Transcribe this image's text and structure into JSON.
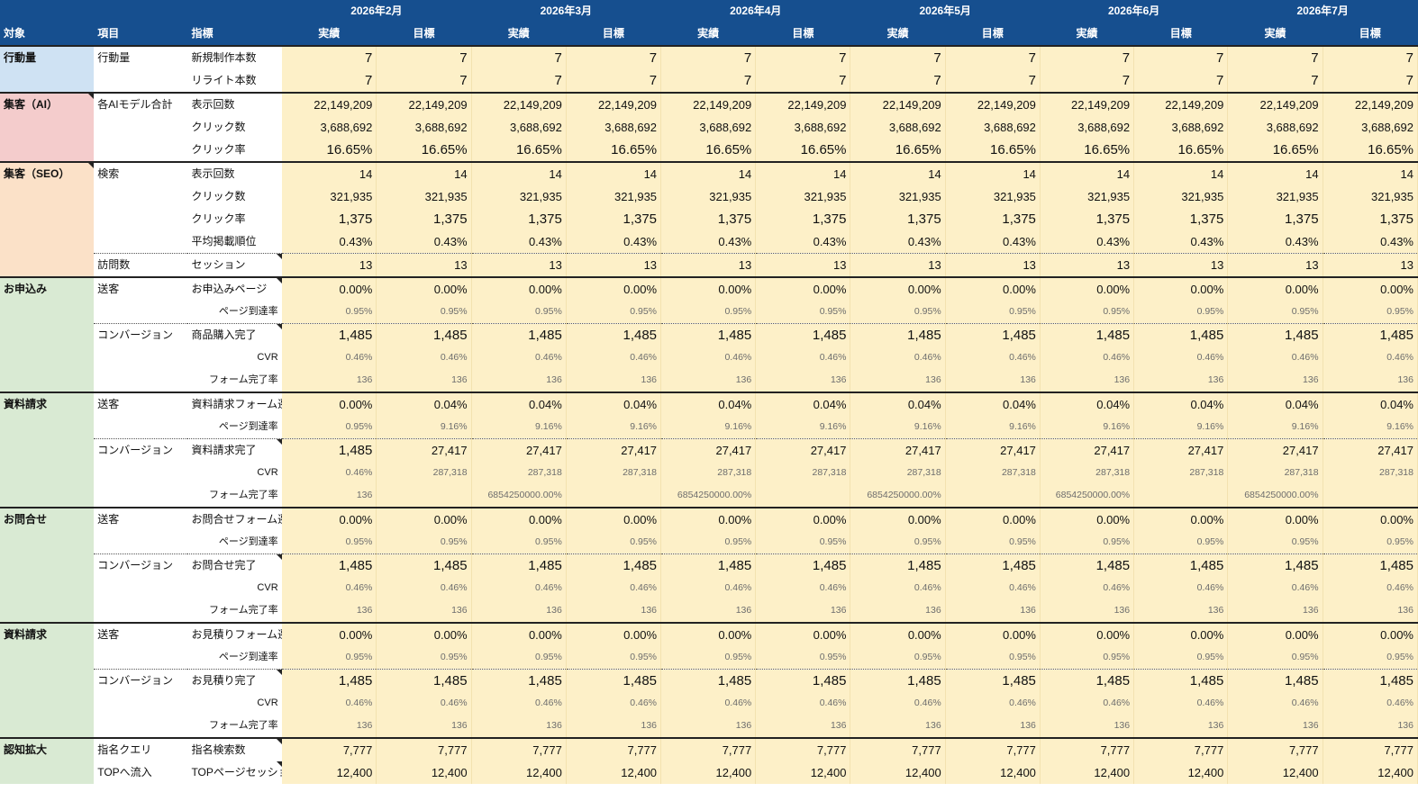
{
  "header": {
    "months": [
      "2026年2月",
      "2026年3月",
      "2026年4月",
      "2026年5月",
      "2026年6月",
      "2026年7月"
    ],
    "col_target": "対象",
    "col_item": "項目",
    "col_metric": "指標",
    "actual": "実績",
    "goal": "目標"
  },
  "rows": [
    {
      "target": "行動量",
      "item": "行動量",
      "metric": "新規制作本数",
      "values": [
        "7",
        "7",
        "7",
        "7",
        "7",
        "7",
        "7",
        "7",
        "7",
        "7",
        "7",
        "7"
      ],
      "bg": "blue",
      "sec": true,
      "size": "big"
    },
    {
      "target": "",
      "item": "",
      "metric": "リライト本数",
      "values": [
        "7",
        "7",
        "7",
        "7",
        "7",
        "7",
        "7",
        "7",
        "7",
        "7",
        "7",
        "7"
      ],
      "bg": "blue",
      "size": "big"
    },
    {
      "target": "集客（AI）",
      "item": "各AIモデル合計",
      "metric": "表示回数",
      "values": [
        "22,149,209",
        "22,149,209",
        "22,149,209",
        "22,149,209",
        "22,149,209",
        "22,149,209",
        "22,149,209",
        "22,149,209",
        "22,149,209",
        "22,149,209",
        "22,149,209",
        "22,149,209"
      ],
      "bg": "pink",
      "sec": true,
      "tri": true
    },
    {
      "target": "",
      "item": "",
      "metric": "クリック数",
      "values": [
        "3,688,692",
        "3,688,692",
        "3,688,692",
        "3,688,692",
        "3,688,692",
        "3,688,692",
        "3,688,692",
        "3,688,692",
        "3,688,692",
        "3,688,692",
        "3,688,692",
        "3,688,692"
      ],
      "bg": "pink"
    },
    {
      "target": "",
      "item": "",
      "metric": "クリック率",
      "values": [
        "16.65%",
        "16.65%",
        "16.65%",
        "16.65%",
        "16.65%",
        "16.65%",
        "16.65%",
        "16.65%",
        "16.65%",
        "16.65%",
        "16.65%",
        "16.65%"
      ],
      "bg": "pink",
      "size": "big"
    },
    {
      "target": "集客（SEO）",
      "item": "検索",
      "metric": "表示回数",
      "values": [
        "14",
        "14",
        "14",
        "14",
        "14",
        "14",
        "14",
        "14",
        "14",
        "14",
        "14",
        "14"
      ],
      "bg": "orange",
      "sec": true,
      "tri": true
    },
    {
      "target": "",
      "item": "",
      "metric": "クリック数",
      "values": [
        "321,935",
        "321,935",
        "321,935",
        "321,935",
        "321,935",
        "321,935",
        "321,935",
        "321,935",
        "321,935",
        "321,935",
        "321,935",
        "321,935"
      ],
      "bg": "orange"
    },
    {
      "target": "",
      "item": "",
      "metric": "クリック率",
      "values": [
        "1,375",
        "1,375",
        "1,375",
        "1,375",
        "1,375",
        "1,375",
        "1,375",
        "1,375",
        "1,375",
        "1,375",
        "1,375",
        "1,375"
      ],
      "bg": "orange",
      "size": "big"
    },
    {
      "target": "",
      "item": "",
      "metric": "平均掲載順位",
      "values": [
        "0.43%",
        "0.43%",
        "0.43%",
        "0.43%",
        "0.43%",
        "0.43%",
        "0.43%",
        "0.43%",
        "0.43%",
        "0.43%",
        "0.43%",
        "0.43%"
      ],
      "bg": "orange"
    },
    {
      "target": "",
      "item": "訪問数",
      "metric": "セッション",
      "values": [
        "13",
        "13",
        "13",
        "13",
        "13",
        "13",
        "13",
        "13",
        "13",
        "13",
        "13",
        "13"
      ],
      "bg": "orange",
      "sub": true,
      "mtri": true
    },
    {
      "target": "お申込み",
      "item": "送客",
      "metric": "お申込みページ",
      "values": [
        "0.00%",
        "0.00%",
        "0.00%",
        "0.00%",
        "0.00%",
        "0.00%",
        "0.00%",
        "0.00%",
        "0.00%",
        "0.00%",
        "0.00%",
        "0.00%"
      ],
      "bg": "green",
      "sec": true,
      "mtri": true
    },
    {
      "target": "",
      "item": "",
      "metric": "ページ到達率",
      "values": [
        "0.95%",
        "0.95%",
        "0.95%",
        "0.95%",
        "0.95%",
        "0.95%",
        "0.95%",
        "0.95%",
        "0.95%",
        "0.95%",
        "0.95%",
        "0.95%"
      ],
      "bg": "green",
      "right": true,
      "size": "small"
    },
    {
      "target": "",
      "item": "コンバージョン",
      "metric": "商品購入完了",
      "values": [
        "1,485",
        "1,485",
        "1,485",
        "1,485",
        "1,485",
        "1,485",
        "1,485",
        "1,485",
        "1,485",
        "1,485",
        "1,485",
        "1,485"
      ],
      "bg": "green",
      "sub": true,
      "size": "big",
      "mtri": true
    },
    {
      "target": "",
      "item": "",
      "metric": "CVR",
      "values": [
        "0.46%",
        "0.46%",
        "0.46%",
        "0.46%",
        "0.46%",
        "0.46%",
        "0.46%",
        "0.46%",
        "0.46%",
        "0.46%",
        "0.46%",
        "0.46%"
      ],
      "bg": "green",
      "right": true,
      "size": "small"
    },
    {
      "target": "",
      "item": "",
      "metric": "フォーム完了率",
      "values": [
        "136",
        "136",
        "136",
        "136",
        "136",
        "136",
        "136",
        "136",
        "136",
        "136",
        "136",
        "136"
      ],
      "bg": "green",
      "right": true,
      "size": "small"
    },
    {
      "target": "資料請求",
      "item": "送客",
      "metric": "資料請求フォーム遷",
      "values": [
        "0.00%",
        "0.04%",
        "0.04%",
        "0.04%",
        "0.04%",
        "0.04%",
        "0.04%",
        "0.04%",
        "0.04%",
        "0.04%",
        "0.04%",
        "0.04%"
      ],
      "bg": "green",
      "sec": true
    },
    {
      "target": "",
      "item": "",
      "metric": "ページ到達率",
      "values": [
        "0.95%",
        "9.16%",
        "9.16%",
        "9.16%",
        "9.16%",
        "9.16%",
        "9.16%",
        "9.16%",
        "9.16%",
        "9.16%",
        "9.16%",
        "9.16%"
      ],
      "bg": "green",
      "right": true,
      "size": "small"
    },
    {
      "target": "",
      "item": "コンバージョン",
      "metric": "資料請求完了",
      "values": [
        "1,485",
        "27,417",
        "27,417",
        "27,417",
        "27,417",
        "27,417",
        "27,417",
        "27,417",
        "27,417",
        "27,417",
        "27,417",
        "27,417"
      ],
      "bg": "green",
      "sub": true,
      "mtri": true,
      "firstbig": true
    },
    {
      "target": "",
      "item": "",
      "metric": "CVR",
      "values": [
        "0.46%",
        "287,318",
        "287,318",
        "287,318",
        "287,318",
        "287,318",
        "287,318",
        "287,318",
        "287,318",
        "287,318",
        "287,318",
        "287,318"
      ],
      "bg": "green",
      "right": true,
      "size": "small"
    },
    {
      "target": "",
      "item": "",
      "metric": "フォーム完了率",
      "values": [
        "136",
        "",
        "6854250000.00%",
        "",
        "6854250000.00%",
        "",
        "6854250000.00%",
        "",
        "6854250000.00%",
        "",
        "6854250000.00%",
        ""
      ],
      "bg": "green",
      "right": true,
      "size": "small"
    },
    {
      "target": "お問合せ",
      "item": "送客",
      "metric": "お問合せフォーム遷",
      "values": [
        "0.00%",
        "0.00%",
        "0.00%",
        "0.00%",
        "0.00%",
        "0.00%",
        "0.00%",
        "0.00%",
        "0.00%",
        "0.00%",
        "0.00%",
        "0.00%"
      ],
      "bg": "green",
      "sec": true
    },
    {
      "target": "",
      "item": "",
      "metric": "ページ到達率",
      "values": [
        "0.95%",
        "0.95%",
        "0.95%",
        "0.95%",
        "0.95%",
        "0.95%",
        "0.95%",
        "0.95%",
        "0.95%",
        "0.95%",
        "0.95%",
        "0.95%"
      ],
      "bg": "green",
      "right": true,
      "size": "small"
    },
    {
      "target": "",
      "item": "コンバージョン",
      "metric": "お問合せ完了",
      "values": [
        "1,485",
        "1,485",
        "1,485",
        "1,485",
        "1,485",
        "1,485",
        "1,485",
        "1,485",
        "1,485",
        "1,485",
        "1,485",
        "1,485"
      ],
      "bg": "green",
      "sub": true,
      "size": "big",
      "mtri": true
    },
    {
      "target": "",
      "item": "",
      "metric": "CVR",
      "values": [
        "0.46%",
        "0.46%",
        "0.46%",
        "0.46%",
        "0.46%",
        "0.46%",
        "0.46%",
        "0.46%",
        "0.46%",
        "0.46%",
        "0.46%",
        "0.46%"
      ],
      "bg": "green",
      "right": true,
      "size": "small"
    },
    {
      "target": "",
      "item": "",
      "metric": "フォーム完了率",
      "values": [
        "136",
        "136",
        "136",
        "136",
        "136",
        "136",
        "136",
        "136",
        "136",
        "136",
        "136",
        "136"
      ],
      "bg": "green",
      "right": true,
      "size": "small"
    },
    {
      "target": "資料請求",
      "item": "送客",
      "metric": "お見積りフォーム遷",
      "values": [
        "0.00%",
        "0.00%",
        "0.00%",
        "0.00%",
        "0.00%",
        "0.00%",
        "0.00%",
        "0.00%",
        "0.00%",
        "0.00%",
        "0.00%",
        "0.00%"
      ],
      "bg": "green",
      "sec": true
    },
    {
      "target": "",
      "item": "",
      "metric": "ページ到達率",
      "values": [
        "0.95%",
        "0.95%",
        "0.95%",
        "0.95%",
        "0.95%",
        "0.95%",
        "0.95%",
        "0.95%",
        "0.95%",
        "0.95%",
        "0.95%",
        "0.95%"
      ],
      "bg": "green",
      "right": true,
      "size": "small"
    },
    {
      "target": "",
      "item": "コンバージョン",
      "metric": "お見積り完了",
      "values": [
        "1,485",
        "1,485",
        "1,485",
        "1,485",
        "1,485",
        "1,485",
        "1,485",
        "1,485",
        "1,485",
        "1,485",
        "1,485",
        "1,485"
      ],
      "bg": "green",
      "sub": true,
      "size": "big",
      "mtri": true
    },
    {
      "target": "",
      "item": "",
      "metric": "CVR",
      "values": [
        "0.46%",
        "0.46%",
        "0.46%",
        "0.46%",
        "0.46%",
        "0.46%",
        "0.46%",
        "0.46%",
        "0.46%",
        "0.46%",
        "0.46%",
        "0.46%"
      ],
      "bg": "green",
      "right": true,
      "size": "small"
    },
    {
      "target": "",
      "item": "",
      "metric": "フォーム完了率",
      "values": [
        "136",
        "136",
        "136",
        "136",
        "136",
        "136",
        "136",
        "136",
        "136",
        "136",
        "136",
        "136"
      ],
      "bg": "green",
      "right": true,
      "size": "small"
    },
    {
      "target": "認知拡大",
      "item": "指名クエリ",
      "metric": "指名検索数",
      "values": [
        "7,777",
        "7,777",
        "7,777",
        "7,777",
        "7,777",
        "7,777",
        "7,777",
        "7,777",
        "7,777",
        "7,777",
        "7,777",
        "7,777"
      ],
      "bg": "green",
      "sec": true,
      "mtri": true
    },
    {
      "target": "",
      "item": "TOPへ流入",
      "metric": "TOPページセッショ",
      "values": [
        "12,400",
        "12,400",
        "12,400",
        "12,400",
        "12,400",
        "12,400",
        "12,400",
        "12,400",
        "12,400",
        "12,400",
        "12,400",
        "12,400"
      ],
      "bg": "green",
      "mtri": true
    }
  ]
}
